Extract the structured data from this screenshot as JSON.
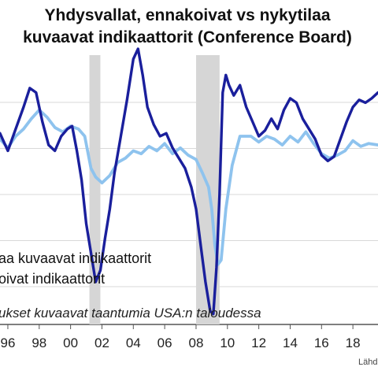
{
  "chart_data": {
    "type": "line",
    "title": [
      "Yhdysvallat, ennakoivat vs nykytilaa",
      "kuvaavat indikaattorit (Conference Board)"
    ],
    "xlabel": "",
    "ylabel": "",
    "x_tick_labels": [
      "96",
      "98",
      "00",
      "02",
      "04",
      "06",
      "08",
      "10",
      "12",
      "14",
      "16",
      "18"
    ],
    "xlim": [
      1995.5,
      2019.6
    ],
    "ylim": [
      -1,
      1
    ],
    "grid": "horizontal",
    "legend_position": "left-middle",
    "legend": [
      "aa kuvaavat indikaattorit",
      "oivat indikaattorit"
    ],
    "annotation": "ukset kuvaavat taantumia USA:n taloudessa",
    "source": "Lähde",
    "recessions": [
      [
        2001.2,
        2001.9
      ],
      [
        2008.0,
        2009.5
      ]
    ],
    "colors": {
      "leading": "#1a1f9c",
      "coincident": "#8ec3ee",
      "recession": "#d6d6d6"
    },
    "series": [
      {
        "key": "coincident",
        "x": [
          1995.5,
          1996.0,
          1996.5,
          1997.0,
          1997.5,
          1998.0,
          1998.5,
          1999.0,
          1999.5,
          2000.0,
          2000.5,
          2000.9,
          2001.3,
          2001.6,
          2002.0,
          2002.5,
          2003.0,
          2003.5,
          2004.0,
          2004.5,
          2005.0,
          2005.5,
          2006.0,
          2006.5,
          2007.0,
          2007.5,
          2008.0,
          2008.4,
          2008.8,
          2009.0,
          2009.2,
          2009.4,
          2009.6,
          2009.9,
          2010.3,
          2010.8,
          2011.5,
          2012.0,
          2012.5,
          2013.0,
          2013.5,
          2014.0,
          2014.5,
          2015.0,
          2015.5,
          2016.0,
          2016.5,
          2017.0,
          2017.5,
          2018.0,
          2018.5,
          2019.0,
          2019.6
        ],
        "y": [
          0.18,
          0.12,
          0.2,
          0.25,
          0.32,
          0.38,
          0.33,
          0.26,
          0.23,
          0.27,
          0.25,
          0.2,
          -0.02,
          -0.08,
          -0.12,
          -0.07,
          0.02,
          0.05,
          0.1,
          0.08,
          0.13,
          0.1,
          0.15,
          0.08,
          0.12,
          0.07,
          0.04,
          -0.05,
          -0.15,
          -0.3,
          -0.55,
          -0.68,
          -0.65,
          -0.3,
          0.0,
          0.2,
          0.2,
          0.16,
          0.2,
          0.18,
          0.14,
          0.2,
          0.16,
          0.23,
          0.15,
          0.08,
          0.05,
          0.07,
          0.1,
          0.17,
          0.13,
          0.15,
          0.14
        ]
      },
      {
        "key": "leading",
        "x": [
          1995.5,
          1996.0,
          1996.5,
          1997.0,
          1997.4,
          1997.8,
          1998.2,
          1998.6,
          1999.0,
          1999.4,
          1999.8,
          2000.1,
          2000.4,
          2000.7,
          2001.0,
          2001.3,
          2001.6,
          2001.9,
          2002.2,
          2002.5,
          2002.8,
          2003.2,
          2003.6,
          2004.0,
          2004.3,
          2004.6,
          2004.9,
          2005.3,
          2005.7,
          2006.1,
          2006.5,
          2006.9,
          2007.3,
          2007.7,
          2008.0,
          2008.3,
          2008.6,
          2008.9,
          2009.1,
          2009.3,
          2009.5,
          2009.7,
          2009.9,
          2010.1,
          2010.4,
          2010.8,
          2011.2,
          2011.6,
          2012.0,
          2012.4,
          2012.8,
          2013.2,
          2013.6,
          2014.0,
          2014.4,
          2014.8,
          2015.2,
          2015.6,
          2016.0,
          2016.4,
          2016.8,
          2017.2,
          2017.6,
          2018.0,
          2018.4,
          2018.8,
          2019.2,
          2019.6
        ],
        "y": [
          0.22,
          0.1,
          0.25,
          0.4,
          0.53,
          0.5,
          0.3,
          0.14,
          0.1,
          0.2,
          0.25,
          0.27,
          0.1,
          -0.1,
          -0.4,
          -0.6,
          -0.8,
          -0.72,
          -0.5,
          -0.3,
          -0.05,
          0.2,
          0.45,
          0.73,
          0.8,
          0.62,
          0.4,
          0.28,
          0.2,
          0.22,
          0.12,
          0.05,
          -0.02,
          -0.15,
          -0.3,
          -0.55,
          -0.8,
          -1.0,
          -1.02,
          -0.7,
          -0.2,
          0.5,
          0.62,
          0.55,
          0.48,
          0.55,
          0.4,
          0.3,
          0.2,
          0.24,
          0.32,
          0.25,
          0.38,
          0.46,
          0.43,
          0.32,
          0.25,
          0.18,
          0.07,
          0.03,
          0.06,
          0.18,
          0.3,
          0.4,
          0.45,
          0.43,
          0.46,
          0.5
        ]
      }
    ]
  }
}
